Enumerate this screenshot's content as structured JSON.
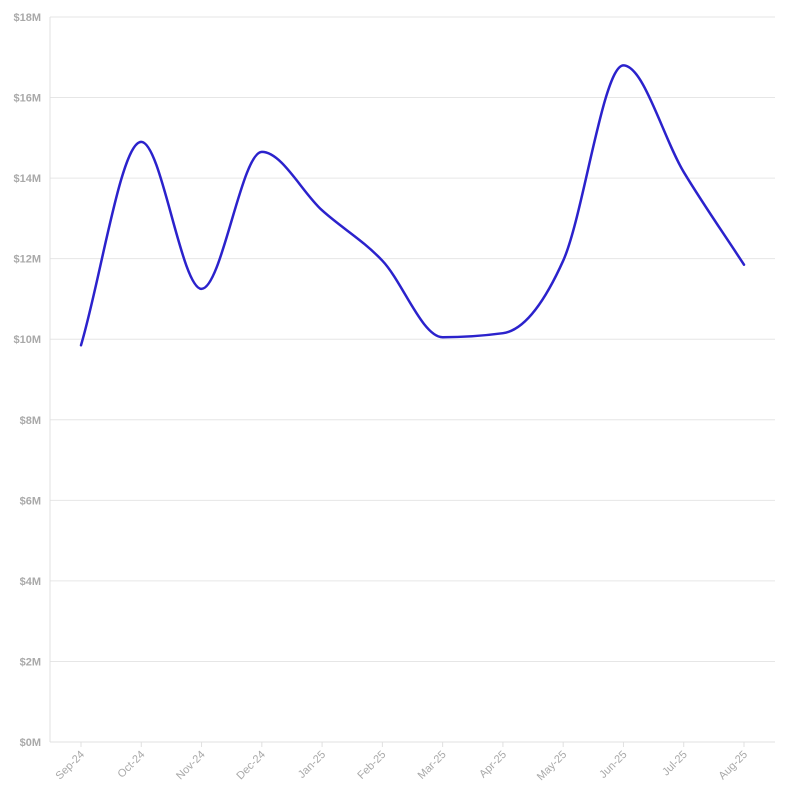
{
  "chart_data": {
    "type": "line",
    "title": "",
    "xlabel": "",
    "ylabel": "",
    "categories": [
      "Sep-24",
      "Oct-24",
      "Nov-24",
      "Dec-24",
      "Jan-25",
      "Feb-25",
      "Mar-25",
      "Apr-25",
      "May-25",
      "Jun-25",
      "Jul-25",
      "Aug-25"
    ],
    "series": [
      {
        "color": "#2b22cc",
        "values": [
          9.85,
          14.9,
          11.25,
          14.65,
          13.2,
          11.95,
          10.05,
          10.15,
          11.95,
          16.8,
          14.15,
          11.85
        ]
      }
    ],
    "ylim": [
      0,
      18
    ],
    "yticks": [
      0,
      2,
      4,
      6,
      8,
      10,
      12,
      14,
      16,
      18
    ],
    "ytick_labels": [
      "$0M",
      "$2M",
      "$4M",
      "$6M",
      "$8M",
      "$10M",
      "$12M",
      "$14M",
      "$16M",
      "$18M"
    ],
    "grid": true,
    "smooth": true,
    "legend": "none"
  }
}
